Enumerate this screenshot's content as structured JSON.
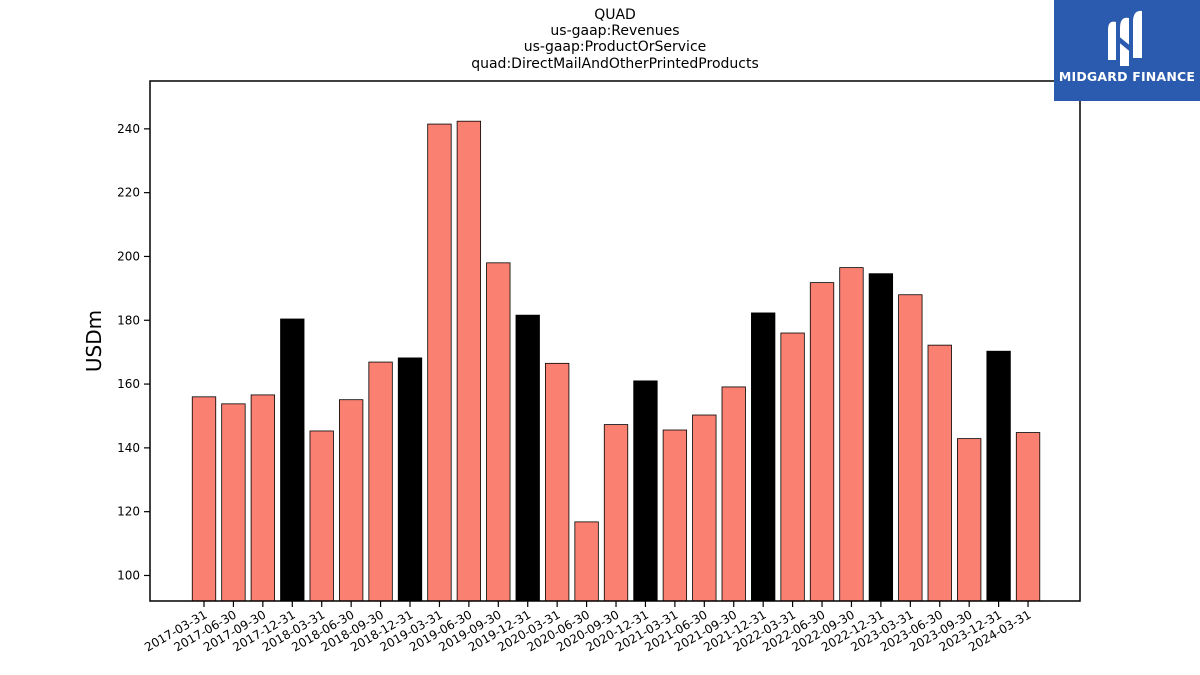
{
  "header": {
    "title_lines": [
      "QUAD",
      "us-gaap:Revenues",
      "us-gaap:ProductOrService",
      "quad:DirectMailAndOtherPrintedProducts"
    ]
  },
  "logo": {
    "text": "MIDGARD FINANCE",
    "background": "#2b5bae"
  },
  "chart_data": {
    "type": "bar",
    "title": "QUAD\nus-gaap:Revenues\nus-gaap:ProductOrService\nquad:DirectMailAndOtherPrintedProducts",
    "xlabel": "",
    "ylabel": "USDm",
    "ylim": [
      92,
      255
    ],
    "yticks": [
      100,
      120,
      140,
      160,
      180,
      200,
      220,
      240
    ],
    "grid": false,
    "colors": {
      "quarter": "#fa8072",
      "year_end": "#000000",
      "edge": "#000000"
    },
    "categories": [
      "2017-03-31",
      "2017-06-30",
      "2017-09-30",
      "2017-12-31",
      "2018-03-31",
      "2018-06-30",
      "2018-09-30",
      "2018-12-31",
      "2019-03-31",
      "2019-06-30",
      "2019-09-30",
      "2019-12-31",
      "2020-03-31",
      "2020-06-30",
      "2020-09-30",
      "2020-12-31",
      "2021-03-31",
      "2021-06-30",
      "2021-09-30",
      "2021-12-31",
      "2022-03-31",
      "2022-06-30",
      "2022-09-30",
      "2022-12-31",
      "2023-03-31",
      "2023-06-30",
      "2023-09-30",
      "2023-12-31",
      "2024-03-31"
    ],
    "values": [
      156.0,
      153.8,
      156.6,
      180.4,
      145.3,
      155.1,
      166.9,
      168.2,
      241.5,
      242.4,
      198.0,
      181.6,
      166.5,
      116.8,
      147.3,
      161.0,
      145.6,
      150.3,
      159.1,
      182.3,
      176.0,
      191.8,
      196.5,
      194.6,
      188.0,
      172.2,
      142.9,
      170.3,
      144.8
    ]
  }
}
